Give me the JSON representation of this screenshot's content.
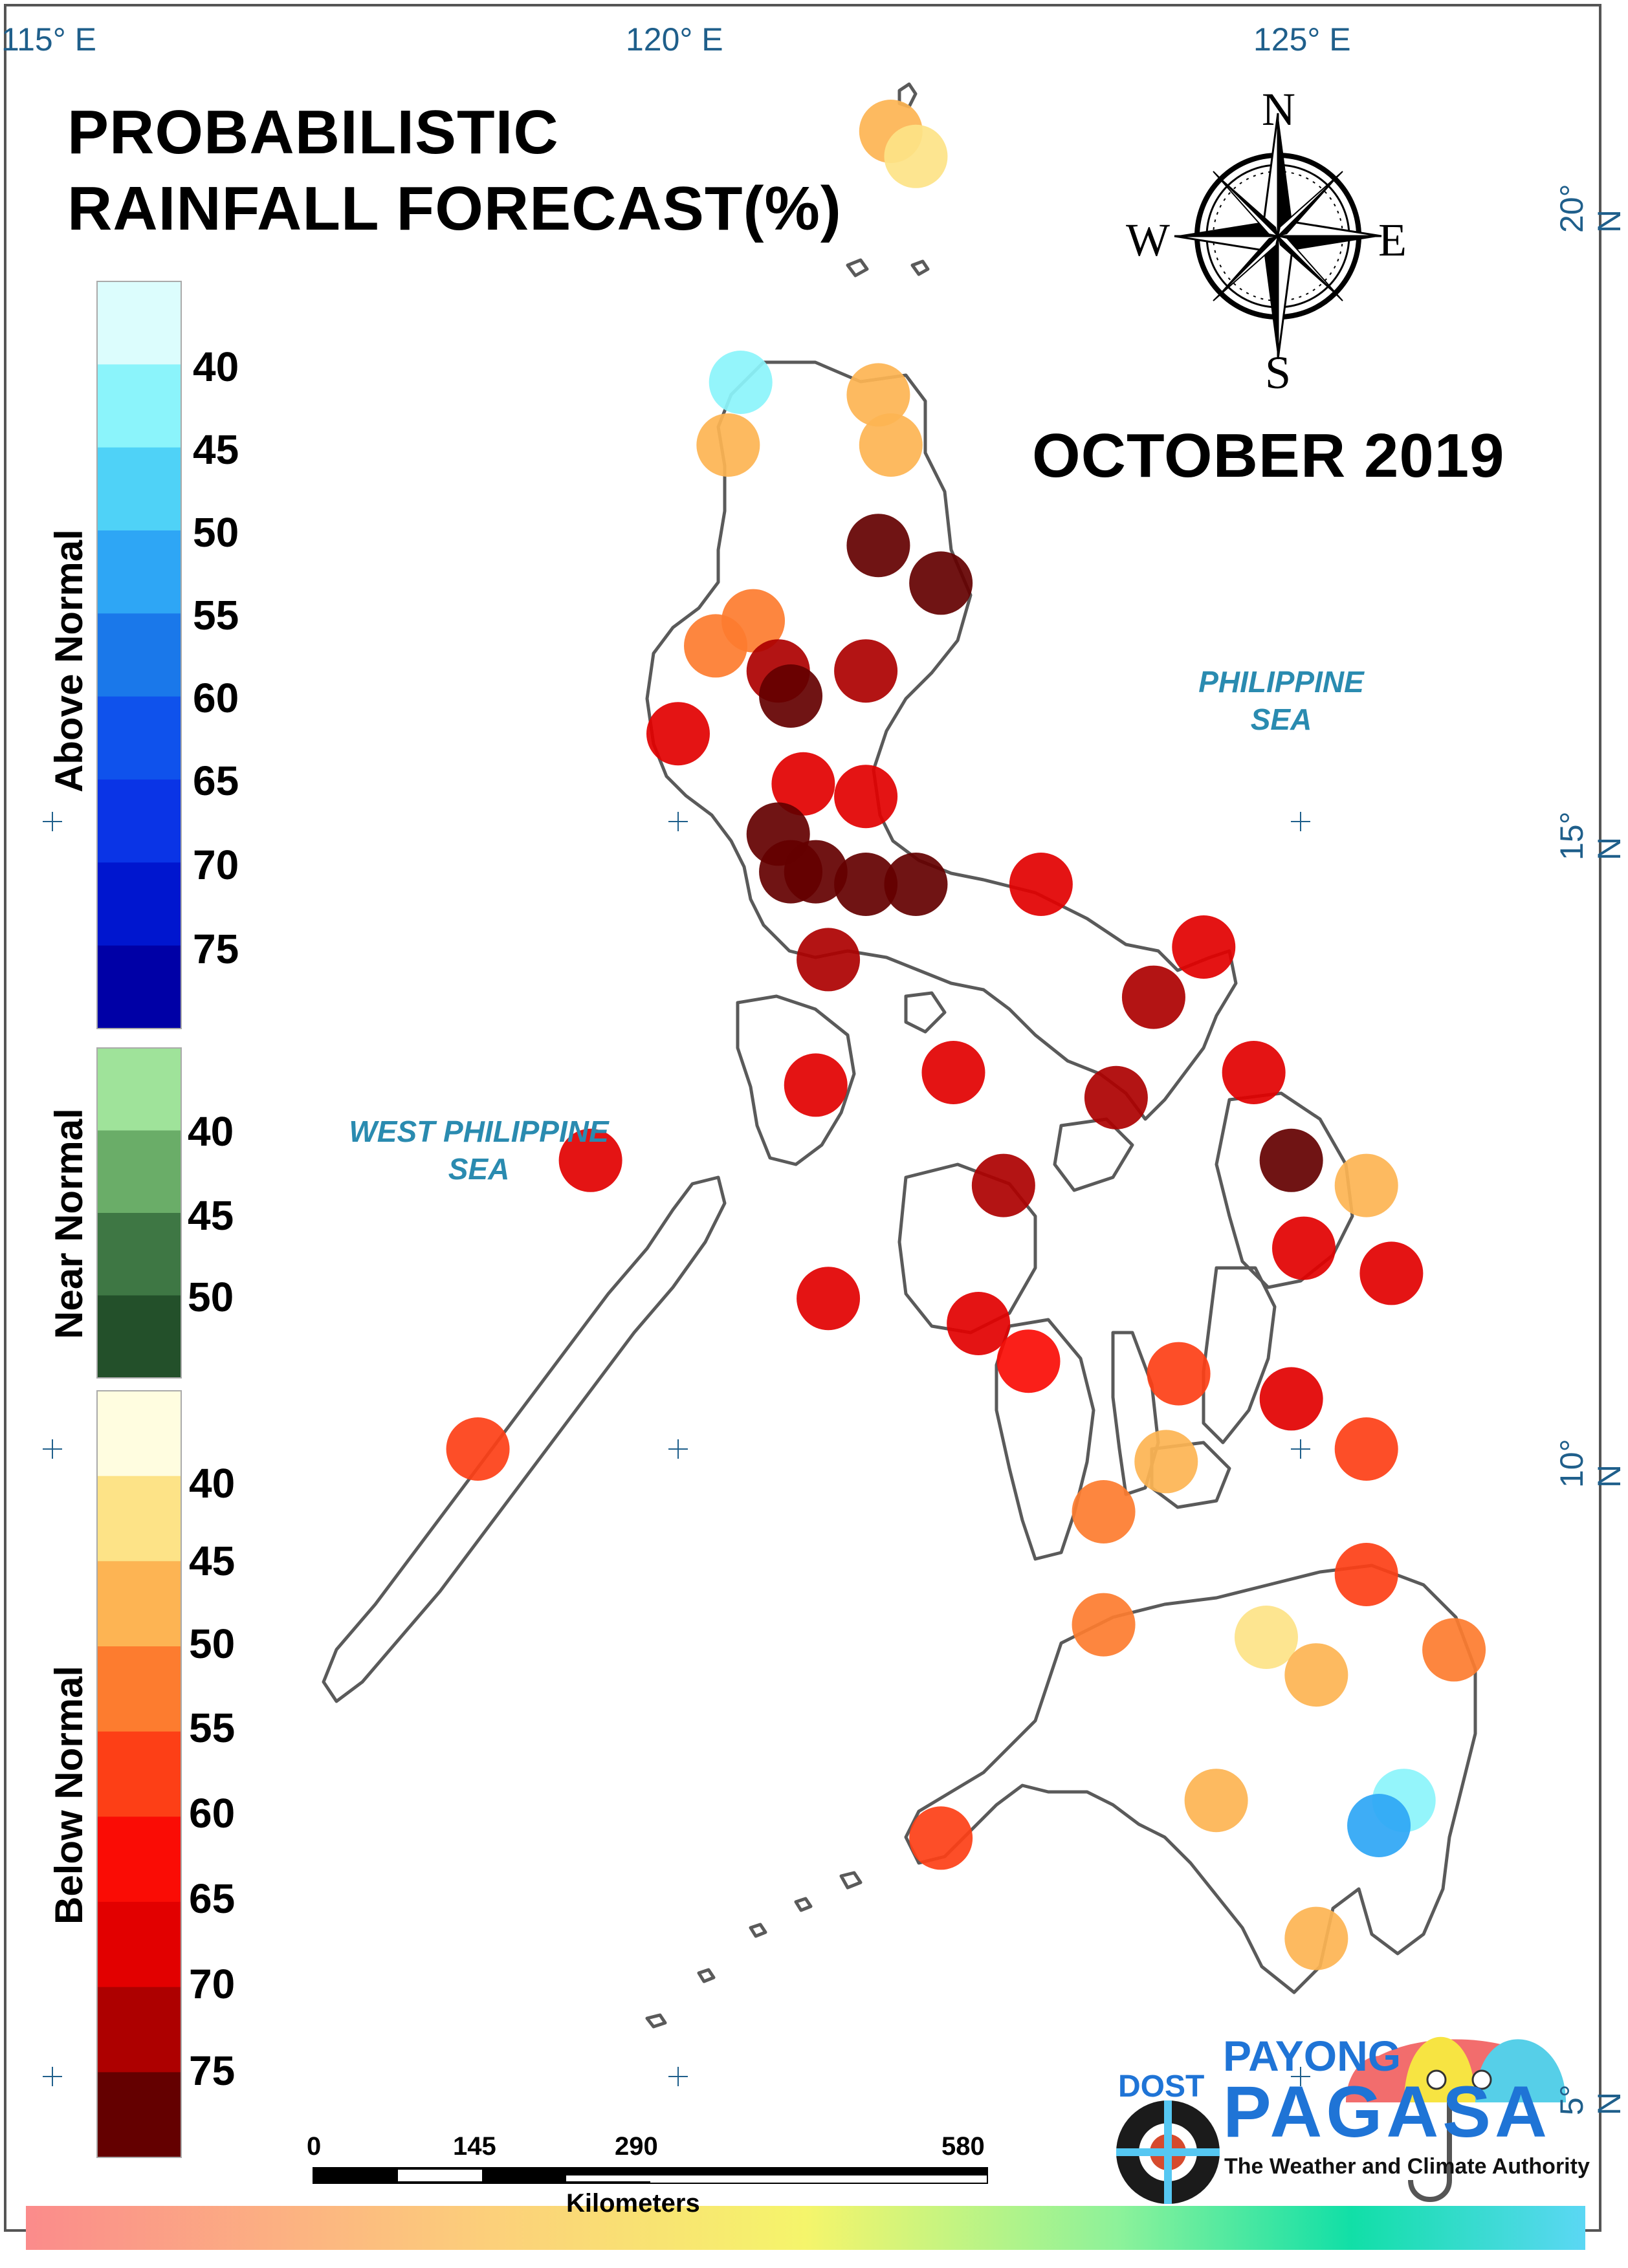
{
  "title": {
    "line1": "PROBABILISTIC",
    "line2": "RAINFALL FORECAST(%)",
    "period": "OCTOBER 2019"
  },
  "coordinates": {
    "lon_labels": [
      "115° E",
      "120° E",
      "125° E"
    ],
    "lat_labels": [
      "20° N",
      "15° N",
      "10° N",
      "5° N"
    ]
  },
  "seas": {
    "philippine_sea": [
      "PHILIPPINE",
      "SEA"
    ],
    "west_philippine_sea": [
      "WEST PHILIPPINE",
      "SEA"
    ]
  },
  "compass": {
    "n": "N",
    "s": "S",
    "e": "E",
    "w": "W"
  },
  "legend": {
    "above_normal": {
      "title": "Above Normal",
      "labels": [
        "40",
        "45",
        "50",
        "55",
        "60",
        "65",
        "70",
        "75"
      ],
      "colors": [
        "#dcfdfd",
        "#8bf4fb",
        "#4fd2f7",
        "#2ea6f5",
        "#1a78ea",
        "#0f52ec",
        "#0a34e6",
        "#0016cf",
        "#0000a6"
      ]
    },
    "near_normal": {
      "title": "Near Normal",
      "labels": [
        "40",
        "45",
        "50"
      ],
      "colors": [
        "#9fe39a",
        "#6aad68",
        "#3e7744",
        "#23502a"
      ]
    },
    "below_normal": {
      "title": "Below Normal",
      "labels": [
        "40",
        "45",
        "50",
        "55",
        "60",
        "65",
        "70",
        "75"
      ],
      "colors": [
        "#fffde0",
        "#fde387",
        "#fdb453",
        "#fd7c2f",
        "#fd3f16",
        "#fa0c05",
        "#e20000",
        "#ad0000",
        "#640000"
      ]
    }
  },
  "scale_bar": {
    "labels": [
      "0",
      "145",
      "290",
      "580"
    ],
    "unit_partial": "Kilometers"
  },
  "logo": {
    "dost": "DOST",
    "payong": "PAYONG",
    "pagasa": "PAGASA",
    "tagline": "The Weather and Climate Authority"
  },
  "stations": [
    {
      "lon": 121.7,
      "lat": 20.5,
      "category": "below",
      "prob": 45
    },
    {
      "lon": 121.9,
      "lat": 20.3,
      "category": "below",
      "prob": 40
    },
    {
      "lon": 120.5,
      "lat": 18.5,
      "category": "above",
      "prob": 40
    },
    {
      "lon": 121.6,
      "lat": 18.4,
      "category": "below",
      "prob": 45
    },
    {
      "lon": 120.4,
      "lat": 18.0,
      "category": "below",
      "prob": 45
    },
    {
      "lon": 121.7,
      "lat": 18.0,
      "category": "below",
      "prob": 45
    },
    {
      "lon": 121.6,
      "lat": 17.2,
      "category": "below",
      "prob": 75
    },
    {
      "lon": 122.1,
      "lat": 16.9,
      "category": "below",
      "prob": 75
    },
    {
      "lon": 120.6,
      "lat": 16.6,
      "category": "below",
      "prob": 50
    },
    {
      "lon": 120.3,
      "lat": 16.4,
      "category": "below",
      "prob": 50
    },
    {
      "lon": 120.8,
      "lat": 16.2,
      "category": "below",
      "prob": 70
    },
    {
      "lon": 121.5,
      "lat": 16.2,
      "category": "below",
      "prob": 70
    },
    {
      "lon": 120.9,
      "lat": 16.0,
      "category": "below",
      "prob": 75
    },
    {
      "lon": 120.0,
      "lat": 15.7,
      "category": "below",
      "prob": 65
    },
    {
      "lon": 121.0,
      "lat": 15.3,
      "category": "below",
      "prob": 65
    },
    {
      "lon": 121.5,
      "lat": 15.2,
      "category": "below",
      "prob": 65
    },
    {
      "lon": 120.8,
      "lat": 14.9,
      "category": "below",
      "prob": 75
    },
    {
      "lon": 120.9,
      "lat": 14.6,
      "category": "below",
      "prob": 75
    },
    {
      "lon": 121.1,
      "lat": 14.6,
      "category": "below",
      "prob": 75
    },
    {
      "lon": 121.5,
      "lat": 14.5,
      "category": "below",
      "prob": 75
    },
    {
      "lon": 121.9,
      "lat": 14.5,
      "category": "below",
      "prob": 75
    },
    {
      "lon": 122.9,
      "lat": 14.5,
      "category": "below",
      "prob": 65
    },
    {
      "lon": 124.2,
      "lat": 14.0,
      "category": "below",
      "prob": 65
    },
    {
      "lon": 121.2,
      "lat": 13.9,
      "category": "below",
      "prob": 70
    },
    {
      "lon": 123.8,
      "lat": 13.6,
      "category": "below",
      "prob": 70
    },
    {
      "lon": 121.1,
      "lat": 12.9,
      "category": "below",
      "prob": 65
    },
    {
      "lon": 122.2,
      "lat": 13.0,
      "category": "below",
      "prob": 65
    },
    {
      "lon": 123.5,
      "lat": 12.8,
      "category": "below",
      "prob": 70
    },
    {
      "lon": 124.6,
      "lat": 13.0,
      "category": "below",
      "prob": 65
    },
    {
      "lon": 119.3,
      "lat": 12.3,
      "category": "below",
      "prob": 65
    },
    {
      "lon": 124.9,
      "lat": 12.3,
      "category": "below",
      "prob": 75
    },
    {
      "lon": 125.5,
      "lat": 12.1,
      "category": "below",
      "prob": 45
    },
    {
      "lon": 122.6,
      "lat": 12.1,
      "category": "below",
      "prob": 70
    },
    {
      "lon": 125.0,
      "lat": 11.6,
      "category": "below",
      "prob": 65
    },
    {
      "lon": 125.7,
      "lat": 11.4,
      "category": "below",
      "prob": 65
    },
    {
      "lon": 121.2,
      "lat": 11.2,
      "category": "below",
      "prob": 65
    },
    {
      "lon": 122.4,
      "lat": 11.0,
      "category": "below",
      "prob": 65
    },
    {
      "lon": 122.8,
      "lat": 10.7,
      "category": "below",
      "prob": 60
    },
    {
      "lon": 124.0,
      "lat": 10.6,
      "category": "below",
      "prob": 55
    },
    {
      "lon": 124.9,
      "lat": 10.4,
      "category": "below",
      "prob": 65
    },
    {
      "lon": 118.4,
      "lat": 10.0,
      "category": "below",
      "prob": 55
    },
    {
      "lon": 125.5,
      "lat": 10.0,
      "category": "below",
      "prob": 55
    },
    {
      "lon": 123.9,
      "lat": 9.9,
      "category": "below",
      "prob": 45
    },
    {
      "lon": 123.4,
      "lat": 9.5,
      "category": "below",
      "prob": 50
    },
    {
      "lon": 125.5,
      "lat": 9.0,
      "category": "below",
      "prob": 55
    },
    {
      "lon": 123.4,
      "lat": 8.6,
      "category": "below",
      "prob": 50
    },
    {
      "lon": 124.7,
      "lat": 8.5,
      "category": "below",
      "prob": 40
    },
    {
      "lon": 126.2,
      "lat": 8.4,
      "category": "below",
      "prob": 50
    },
    {
      "lon": 125.1,
      "lat": 8.2,
      "category": "below",
      "prob": 45
    },
    {
      "lon": 124.3,
      "lat": 7.2,
      "category": "below",
      "prob": 45
    },
    {
      "lon": 125.8,
      "lat": 7.2,
      "category": "above",
      "prob": 40
    },
    {
      "lon": 125.6,
      "lat": 7.0,
      "category": "above",
      "prob": 50
    },
    {
      "lon": 122.1,
      "lat": 6.9,
      "category": "below",
      "prob": 55
    },
    {
      "lon": 125.1,
      "lat": 6.1,
      "category": "below",
      "prob": 45
    }
  ]
}
